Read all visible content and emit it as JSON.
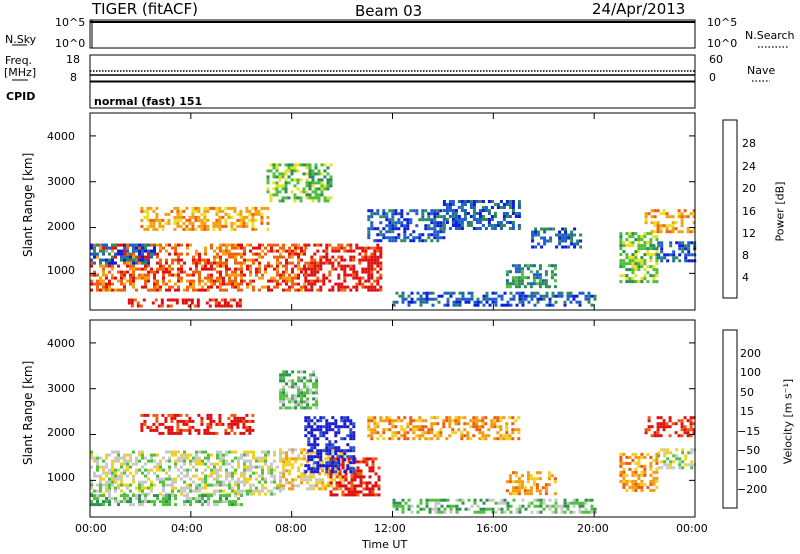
{
  "header": {
    "station": "TIGER (fitACF)",
    "beam": "Beam 03",
    "date": "24/Apr/2013"
  },
  "nsky_panel": {
    "left_label": "N.Sky",
    "right_label": "N.Search",
    "left_ticks": [
      "10^5",
      "10^0"
    ],
    "right_ticks": [
      "10^5",
      "10^0"
    ]
  },
  "freq_panel": {
    "left_label_1": "Freq.",
    "left_label_2": "[MHz]",
    "right_label": "Nave",
    "left_ticks": [
      "18",
      "8"
    ],
    "right_ticks": [
      "60",
      "0"
    ]
  },
  "cpid": {
    "label": "CPID",
    "value": "normal (fast) 151"
  },
  "colors": {
    "power": [
      "#0a1edc",
      "#1f5fc8",
      "#2e8a5a",
      "#4cc03a",
      "#e8e020",
      "#f5a010",
      "#f06010",
      "#e01010"
    ],
    "velocity": [
      "#1a1ad0",
      "#2a52c8",
      "#2f8f55",
      "#4ec23a",
      "#c8c8c8",
      "#f0d020",
      "#f59a10",
      "#f05a10",
      "#e01010"
    ]
  },
  "chart_data": [
    {
      "type": "heatmap",
      "name": "power",
      "ylabel": "Slant Range [km]",
      "yticks": [
        "1000",
        "2000",
        "3000",
        "4000"
      ],
      "ylim": [
        200,
        4500
      ],
      "xlim": [
        0,
        24
      ],
      "colorbar": {
        "label": "Power [dB]",
        "ticks": [
          "4",
          "8",
          "12",
          "16",
          "20",
          "24",
          "28"
        ]
      },
      "echo_regions": [
        {
          "t": [
            0.0,
            8.5
          ],
          "r": [
            650,
            1650
          ],
          "level": 6
        },
        {
          "t": [
            8.5,
            11.5
          ],
          "r": [
            650,
            1650
          ],
          "level": 7
        },
        {
          "t": [
            2.0,
            7.0
          ],
          "r": [
            1950,
            2450
          ],
          "level": 5
        },
        {
          "t": [
            0.0,
            2.5
          ],
          "r": [
            1200,
            1650
          ],
          "level": 1
        },
        {
          "t": [
            1.5,
            6.0
          ],
          "r": [
            300,
            450
          ],
          "level": 7
        },
        {
          "t": [
            7.0,
            9.5
          ],
          "r": [
            2600,
            3400
          ],
          "level": 3
        },
        {
          "t": [
            11.0,
            14.0
          ],
          "r": [
            1700,
            2400
          ],
          "level": 1
        },
        {
          "t": [
            14.0,
            17.0
          ],
          "r": [
            2000,
            2600
          ],
          "level": 1
        },
        {
          "t": [
            16.5,
            18.5
          ],
          "r": [
            700,
            1200
          ],
          "level": 2
        },
        {
          "t": [
            17.5,
            19.5
          ],
          "r": [
            1600,
            2000
          ],
          "level": 1
        },
        {
          "t": [
            21.0,
            22.5
          ],
          "r": [
            800,
            1900
          ],
          "level": 3
        },
        {
          "t": [
            22.0,
            24.0
          ],
          "r": [
            1900,
            2400
          ],
          "level": 5
        },
        {
          "t": [
            22.5,
            24.0
          ],
          "r": [
            1300,
            1700
          ],
          "level": 1
        },
        {
          "t": [
            12.0,
            20.0
          ],
          "r": [
            300,
            600
          ],
          "level": 1
        }
      ]
    },
    {
      "type": "heatmap",
      "name": "velocity",
      "ylabel": "Slant Range [km]",
      "yticks": [
        "1000",
        "2000",
        "3000",
        "4000"
      ],
      "ylim": [
        200,
        4500
      ],
      "xlim": [
        0,
        24
      ],
      "xticks": [
        "00:00",
        "04:00",
        "08:00",
        "12:00",
        "16:00",
        "20:00",
        "00:00"
      ],
      "xlabel": "Time UT",
      "colorbar": {
        "label": "Velocity [m s⁻¹]",
        "ticks": [
          "200",
          "100",
          "50",
          "15",
          "−15",
          "−50",
          "−100",
          "−200"
        ]
      },
      "echo_regions": [
        {
          "t": [
            0.0,
            7.5
          ],
          "r": [
            700,
            1650
          ],
          "level": 4
        },
        {
          "t": [
            7.5,
            10.0
          ],
          "r": [
            800,
            1700
          ],
          "level": 5
        },
        {
          "t": [
            9.5,
            11.5
          ],
          "r": [
            700,
            1500
          ],
          "level": 8
        },
        {
          "t": [
            8.5,
            10.5
          ],
          "r": [
            1200,
            2400
          ],
          "level": 0
        },
        {
          "t": [
            2.0,
            6.5
          ],
          "r": [
            2000,
            2450
          ],
          "level": 8
        },
        {
          "t": [
            7.5,
            9.0
          ],
          "r": [
            2600,
            3400
          ],
          "level": 3
        },
        {
          "t": [
            11.0,
            17.0
          ],
          "r": [
            1900,
            2400
          ],
          "level": 6
        },
        {
          "t": [
            16.5,
            18.5
          ],
          "r": [
            700,
            1200
          ],
          "level": 6
        },
        {
          "t": [
            21.0,
            22.5
          ],
          "r": [
            800,
            1600
          ],
          "level": 6
        },
        {
          "t": [
            22.0,
            24.0
          ],
          "r": [
            2000,
            2400
          ],
          "level": 8
        },
        {
          "t": [
            22.5,
            24.0
          ],
          "r": [
            1300,
            1700
          ],
          "level": 4
        },
        {
          "t": [
            12.0,
            20.0
          ],
          "r": [
            300,
            600
          ],
          "level": 3
        },
        {
          "t": [
            0.0,
            6.0
          ],
          "r": [
            500,
            700
          ],
          "level": 3
        }
      ]
    }
  ]
}
